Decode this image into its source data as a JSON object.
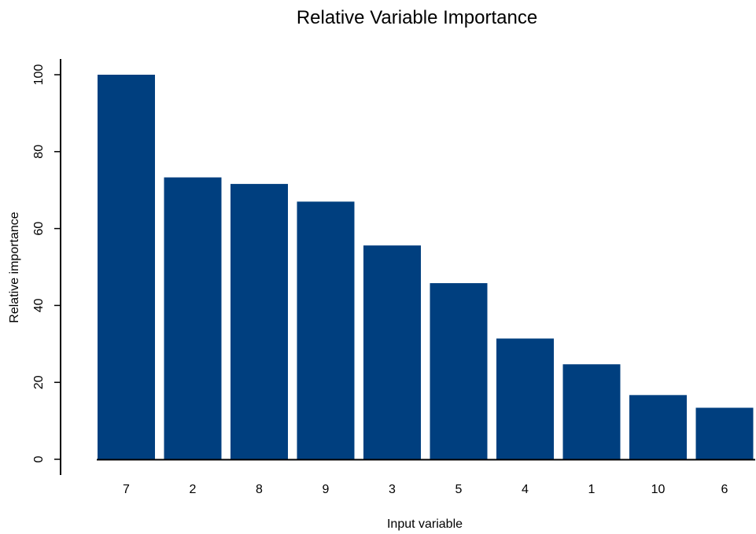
{
  "chart_data": {
    "type": "bar",
    "title": "Relative Variable Importance",
    "xlabel": "Input variable",
    "ylabel": "Relative importance",
    "categories": [
      "7",
      "2",
      "8",
      "9",
      "3",
      "5",
      "4",
      "1",
      "10",
      "6"
    ],
    "values": [
      100,
      73.3,
      71.6,
      67.0,
      55.6,
      45.8,
      31.4,
      24.7,
      16.7,
      13.4
    ],
    "yticks": [
      0,
      20,
      40,
      60,
      80,
      100
    ],
    "ylim": [
      0,
      100
    ],
    "grid": false,
    "legend": "none",
    "bar_color": "#003F7F"
  }
}
